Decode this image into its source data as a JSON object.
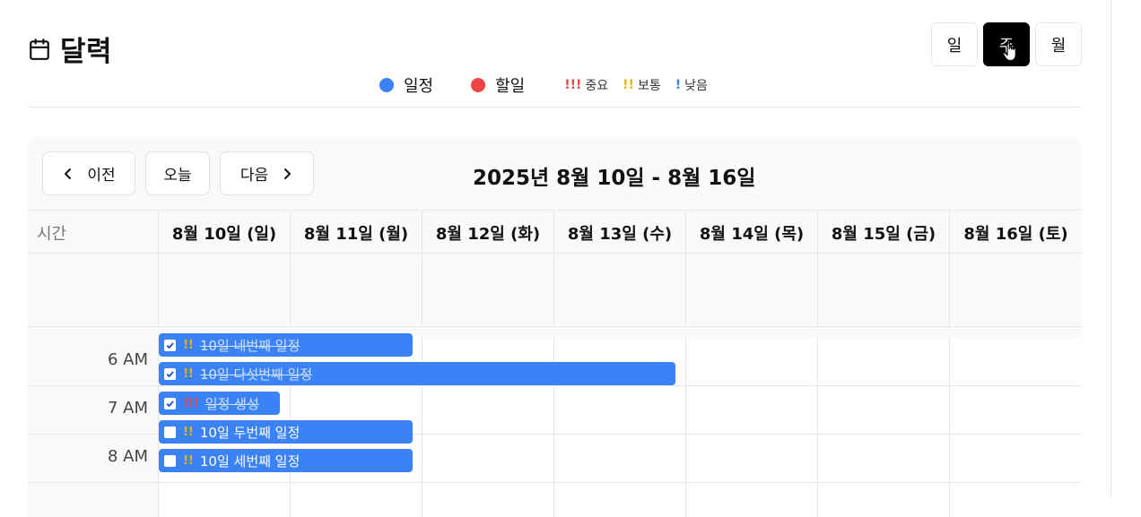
{
  "header": {
    "title": "달력",
    "views": [
      {
        "label": "일",
        "active": false
      },
      {
        "label": "주",
        "active": true
      },
      {
        "label": "월",
        "active": false
      }
    ]
  },
  "legend": {
    "schedule_label": "일정",
    "schedule_color": "#3b82f6",
    "todo_label": "할일",
    "todo_color": "#ef4444",
    "priorities": [
      {
        "marks": "!!!",
        "label": "중요",
        "color": "#ef4444"
      },
      {
        "marks": "!!",
        "label": "보통",
        "color": "#eab308"
      },
      {
        "marks": "!",
        "label": "낮음",
        "color": "#3b82f6"
      }
    ]
  },
  "nav": {
    "prev_label": "이전",
    "today_label": "오늘",
    "next_label": "다음",
    "range_title": "2025년 8월 10일 - 8월 16일"
  },
  "grid": {
    "time_header": "시간",
    "days": [
      "8월 10일 (일)",
      "8월 11일 (월)",
      "8월 12일 (화)",
      "8월 13일 (수)",
      "8월 14일 (목)",
      "8월 15일 (금)",
      "8월 16일 (토)"
    ],
    "hours": [
      "6 AM",
      "7 AM",
      "8 AM"
    ]
  },
  "events": [
    {
      "title": "10일 네번째 일정",
      "priority": "!!",
      "checked": true
    },
    {
      "title": "10일 다섯번째 일정",
      "priority": "!!",
      "checked": true
    },
    {
      "title": "일정 생성",
      "priority": "!!!",
      "checked": true
    },
    {
      "title": "10일 두번째 일정",
      "priority": "!!",
      "checked": false
    },
    {
      "title": "10일 세번째 일정",
      "priority": "!!",
      "checked": false
    }
  ]
}
